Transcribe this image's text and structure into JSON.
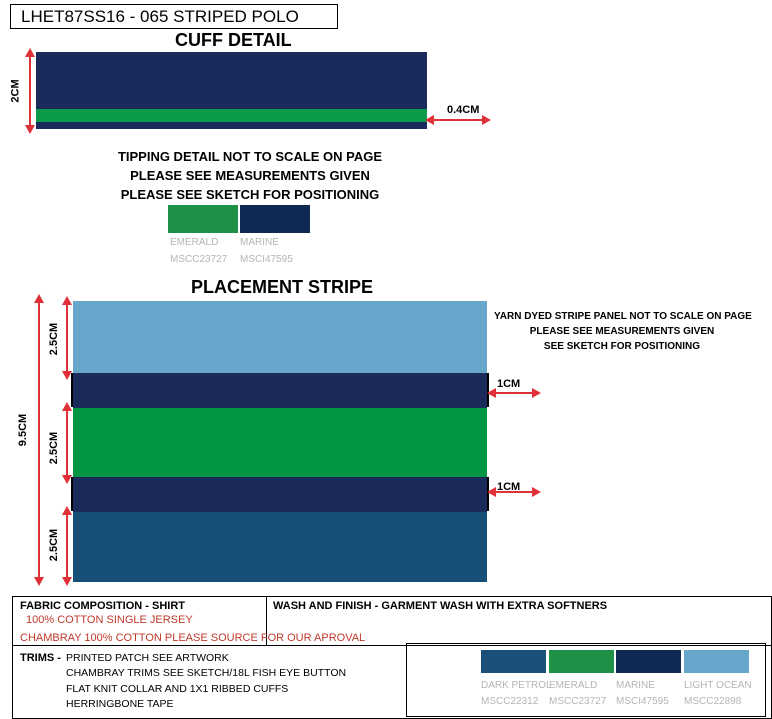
{
  "title": "LHET87SS16 - 065 STRIPED POLO",
  "cuff": {
    "heading": "CUFF  DETAIL",
    "dim_height": "2CM",
    "dim_tip": "0.4CM",
    "colors": {
      "marine": "#1a2a5a",
      "emerald": "#0a9a4a"
    }
  },
  "tipping_note": {
    "line1": "TIPPING DETAIL NOT TO SCALE ON PAGE",
    "line2": "PLEASE SEE MEASUREMENTS GIVEN",
    "line3": "PLEASE SEE SKETCH FOR POSITIONING"
  },
  "tipping_swatches": [
    {
      "name": "EMERALD",
      "code": "MSCC23727",
      "color": "#1e9146"
    },
    {
      "name": "MARINE",
      "code": "MSCI47595",
      "color": "#0e2a52"
    }
  ],
  "placement": {
    "heading": "PLACEMENT STRIPE",
    "note_line1": "YARN DYED STRIPE PANEL NOT TO SCALE ON PAGE",
    "note_line2": "PLEASE SEE MEASUREMENTS GIVEN",
    "note_line3": "SEE SKETCH FOR POSITIONING",
    "dim_total": "9.5CM",
    "dim_top": "2.5CM",
    "dim_mid": "2.5CM",
    "dim_bot": "2.5CM",
    "dim_band1": "1CM",
    "dim_band2": "1CM",
    "colors": {
      "light_ocean": "#67a7cc",
      "marine": "#1b2a58",
      "emerald": "#019544",
      "dark_petrol": "#174f78"
    }
  },
  "fabric": {
    "title": "FABRIC COMPOSITION - SHIRT",
    "line1": "100% COTTON  SINGLE JERSEY",
    "line2": "CHAMBRAY 100% COTTON PLEASE SOURCE FOR OUR APROVAL"
  },
  "wash": {
    "title": "WASH AND FINISH - GARMENT  WASH WITH EXTRA SOFTNERS"
  },
  "trims": {
    "label": "TRIMS -",
    "line1": "PRINTED PATCH SEE ARTWORK",
    "line2": "CHAMBRAY TRIMS SEE SKETCH/18L FISH EYE BUTTON",
    "line3": "FLAT KNIT  COLLAR AND 1X1 RIBBED CUFFS",
    "line4": "HERRINGBONE TAPE"
  },
  "palette": [
    {
      "name": "DARK PETROL",
      "code": "MSCC22312",
      "color": "#1a5079"
    },
    {
      "name": "EMERALD",
      "code": "MSCC23727",
      "color": "#1e9146"
    },
    {
      "name": "MARINE",
      "code": "MSCI47595",
      "color": "#0e2a52"
    },
    {
      "name": "LIGHT OCEAN",
      "code": "MSCC22898",
      "color": "#67a7cc"
    }
  ]
}
